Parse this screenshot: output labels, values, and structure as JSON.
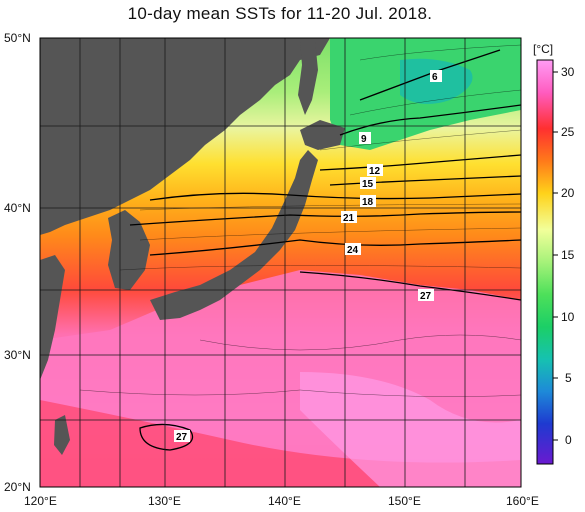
{
  "title": "10-day mean SSTs for 11-20 Jul. 2018.",
  "lat_labels": [
    "50°N",
    "40°N",
    "30°N",
    "20°N"
  ],
  "lon_labels": [
    "120°E",
    "130°E",
    "140°E",
    "150°E",
    "160°E"
  ],
  "colorbar": {
    "unit": "[°C]",
    "ticks": [
      "30",
      "25",
      "20",
      "15",
      "10",
      "5",
      "0"
    ],
    "colors": [
      "#ff8cf5",
      "#ff66c8",
      "#ff3a3a",
      "#ff7a1a",
      "#ffb21a",
      "#ffe21a",
      "#e9ff7a",
      "#8cf56e",
      "#2fd66a",
      "#12c7a0",
      "#12a8d0",
      "#1a5ad8",
      "#2020c8",
      "#5a18c8"
    ]
  },
  "contour_labels": [
    "6",
    "9",
    "12",
    "15",
    "18",
    "21",
    "24",
    "27",
    "27"
  ],
  "colors": {
    "land": "#555555",
    "grid": "#1a1a1a"
  }
}
